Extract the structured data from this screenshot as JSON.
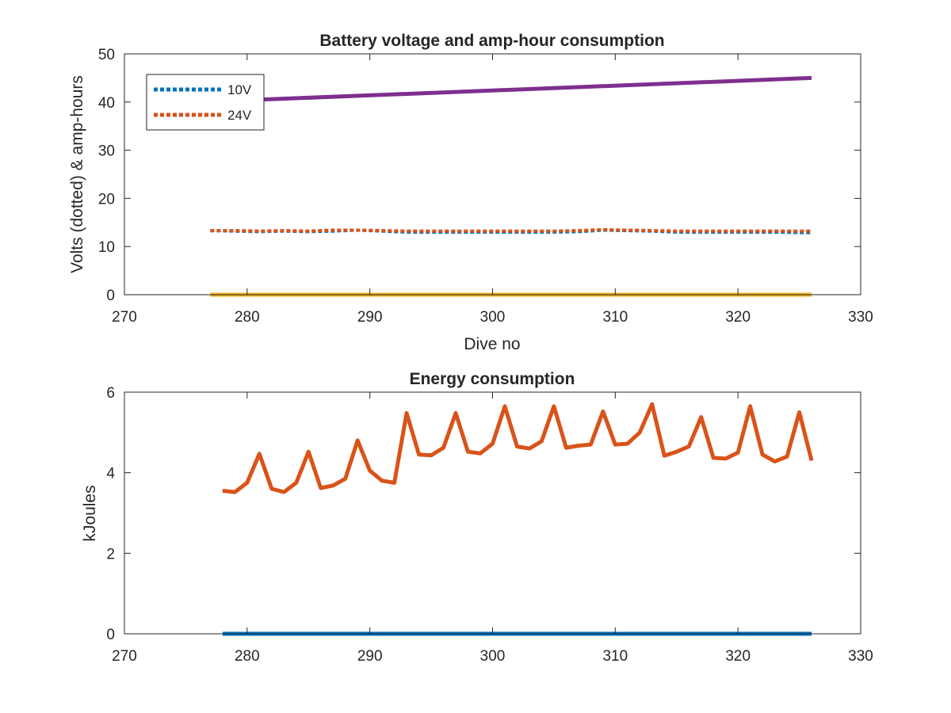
{
  "chart_data": [
    {
      "type": "line",
      "title": "Battery voltage and amp-hour consumption",
      "xlabel": "Dive no",
      "ylabel": "Volts (dotted) & amp-hours",
      "xlim": [
        270,
        330
      ],
      "ylim": [
        0,
        50
      ],
      "xticks": [
        270,
        280,
        290,
        300,
        310,
        320,
        330
      ],
      "yticks": [
        0,
        10,
        20,
        30,
        40,
        50
      ],
      "grid": false,
      "legend_position": "top-left",
      "series": [
        {
          "name": "10V",
          "style": "dotted",
          "color": "#0072BD",
          "points": [
            [
              277,
              13.3
            ],
            [
              279,
              13.2
            ],
            [
              281,
              13.1
            ],
            [
              283,
              13.2
            ],
            [
              285,
              13.1
            ],
            [
              287,
              13.2
            ],
            [
              289,
              13.4
            ],
            [
              291,
              13.2
            ],
            [
              293,
              13.0
            ],
            [
              295,
              13.0
            ],
            [
              297,
              13.0
            ],
            [
              299,
              13.0
            ],
            [
              301,
              13.0
            ],
            [
              303,
              13.0
            ],
            [
              305,
              13.0
            ],
            [
              307,
              13.1
            ],
            [
              309,
              13.4
            ],
            [
              311,
              13.3
            ],
            [
              313,
              13.2
            ],
            [
              315,
              13.0
            ],
            [
              317,
              13.0
            ],
            [
              319,
              13.0
            ],
            [
              321,
              13.0
            ],
            [
              323,
              13.0
            ],
            [
              325,
              12.9
            ],
            [
              326,
              12.9
            ]
          ]
        },
        {
          "name": "24V",
          "style": "dotted",
          "color": "#D95319",
          "points": [
            [
              277,
              13.3
            ],
            [
              279,
              13.3
            ],
            [
              281,
              13.2
            ],
            [
              283,
              13.3
            ],
            [
              285,
              13.2
            ],
            [
              287,
              13.4
            ],
            [
              289,
              13.4
            ],
            [
              291,
              13.3
            ],
            [
              293,
              13.2
            ],
            [
              295,
              13.2
            ],
            [
              297,
              13.2
            ],
            [
              299,
              13.2
            ],
            [
              301,
              13.2
            ],
            [
              303,
              13.2
            ],
            [
              305,
              13.2
            ],
            [
              307,
              13.3
            ],
            [
              309,
              13.5
            ],
            [
              311,
              13.4
            ],
            [
              313,
              13.3
            ],
            [
              315,
              13.2
            ],
            [
              317,
              13.2
            ],
            [
              319,
              13.2
            ],
            [
              321,
              13.2
            ],
            [
              323,
              13.2
            ],
            [
              325,
              13.2
            ],
            [
              326,
              13.2
            ]
          ]
        },
        {
          "style": "solid",
          "color": "#EDB120",
          "points": [
            [
              277,
              0
            ],
            [
              326,
              0
            ]
          ]
        },
        {
          "style": "solid",
          "color": "#7E2F8E",
          "points": [
            [
              281,
              40.5
            ],
            [
              326,
              45.0
            ]
          ]
        }
      ]
    },
    {
      "type": "line",
      "title": "Energy consumption",
      "xlabel": "",
      "ylabel": "kJoules",
      "xlim": [
        270,
        330
      ],
      "ylim": [
        0,
        6
      ],
      "xticks": [
        270,
        280,
        290,
        300,
        310,
        320,
        330
      ],
      "yticks": [
        0,
        2,
        4,
        6
      ],
      "grid": false,
      "series": [
        {
          "style": "solid",
          "color": "#0072BD",
          "points": [
            [
              278,
              0
            ],
            [
              326,
              0
            ]
          ]
        },
        {
          "style": "solid",
          "color": "#D95319",
          "points": [
            [
              278,
              3.55
            ],
            [
              279,
              3.52
            ],
            [
              280,
              3.75
            ],
            [
              281,
              4.47
            ],
            [
              282,
              3.6
            ],
            [
              283,
              3.52
            ],
            [
              284,
              3.75
            ],
            [
              285,
              4.52
            ],
            [
              286,
              3.62
            ],
            [
              287,
              3.68
            ],
            [
              288,
              3.85
            ],
            [
              289,
              4.8
            ],
            [
              290,
              4.05
            ],
            [
              291,
              3.8
            ],
            [
              292,
              3.75
            ],
            [
              293,
              5.48
            ],
            [
              294,
              4.45
            ],
            [
              295,
              4.43
            ],
            [
              296,
              4.62
            ],
            [
              297,
              5.48
            ],
            [
              298,
              4.52
            ],
            [
              299,
              4.48
            ],
            [
              300,
              4.72
            ],
            [
              301,
              5.65
            ],
            [
              302,
              4.65
            ],
            [
              303,
              4.6
            ],
            [
              304,
              4.78
            ],
            [
              305,
              5.65
            ],
            [
              306,
              4.62
            ],
            [
              307,
              4.67
            ],
            [
              308,
              4.7
            ],
            [
              309,
              5.52
            ],
            [
              310,
              4.7
            ],
            [
              311,
              4.72
            ],
            [
              312,
              5.0
            ],
            [
              313,
              5.7
            ],
            [
              314,
              4.42
            ],
            [
              315,
              4.52
            ],
            [
              316,
              4.65
            ],
            [
              317,
              5.38
            ],
            [
              318,
              4.37
            ],
            [
              319,
              4.35
            ],
            [
              320,
              4.5
            ],
            [
              321,
              5.65
            ],
            [
              322,
              4.45
            ],
            [
              323,
              4.28
            ],
            [
              324,
              4.4
            ],
            [
              325,
              5.5
            ],
            [
              326,
              4.3
            ]
          ]
        }
      ]
    }
  ]
}
